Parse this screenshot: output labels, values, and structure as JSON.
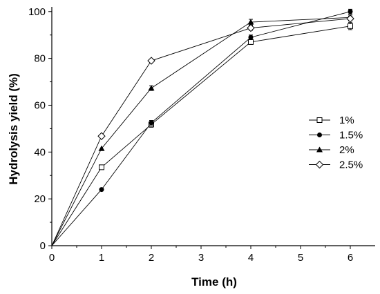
{
  "chart_data": {
    "type": "line",
    "xlabel": "Time (h)",
    "ylabel": "Hydrolysis yield (%)",
    "xlim": [
      0,
      6.5
    ],
    "ylim": [
      0,
      102
    ],
    "xticks": [
      0,
      1,
      2,
      3,
      4,
      5,
      6
    ],
    "yticks": [
      0,
      20,
      40,
      60,
      80,
      100
    ],
    "grid": false,
    "legend_position": "right",
    "series": [
      {
        "name": "1%",
        "marker": "open-square",
        "x": [
          0,
          1,
          2,
          4,
          6
        ],
        "y": [
          0,
          33.5,
          51.8,
          87.0,
          93.8
        ],
        "err": [
          0,
          0,
          1.2,
          1.0,
          1.5
        ]
      },
      {
        "name": "1.5%",
        "marker": "filled-circle",
        "x": [
          0,
          1,
          2,
          4,
          6
        ],
        "y": [
          0,
          24.0,
          52.5,
          89.0,
          100.0
        ],
        "err": [
          0,
          0,
          1.0,
          1.0,
          1.0
        ]
      },
      {
        "name": "2%",
        "marker": "filled-triangle",
        "x": [
          0,
          1,
          2,
          4,
          6
        ],
        "y": [
          0,
          41.5,
          67.3,
          95.5,
          97.5
        ],
        "err": [
          0,
          0,
          1.0,
          1.2,
          1.0
        ]
      },
      {
        "name": "2.5%",
        "marker": "open-diamond",
        "x": [
          0,
          1,
          2,
          4,
          6
        ],
        "y": [
          0,
          46.8,
          79.0,
          93.0,
          97.0
        ],
        "err": [
          0,
          0,
          0.5,
          1.0,
          1.0
        ]
      }
    ]
  }
}
